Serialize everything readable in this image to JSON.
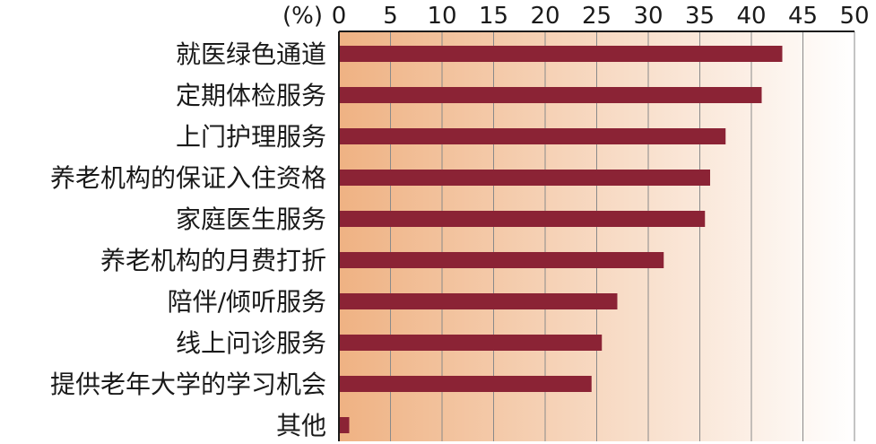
{
  "chart_data": {
    "type": "bar",
    "orientation": "horizontal",
    "unit": "(%)",
    "categories": [
      "就医绿色通道",
      "定期体检服务",
      "上门护理服务",
      "养老机构的保证入住资格",
      "家庭医生服务",
      "养老机构的月费打折",
      "陪伴/倾听服务",
      "线上问诊服务",
      "提供老年大学的学习机会",
      "其他"
    ],
    "values": [
      43.0,
      41.0,
      37.5,
      36.0,
      35.5,
      31.5,
      27.0,
      25.5,
      24.5,
      1.0
    ],
    "xlim": [
      0,
      50
    ],
    "xticks": [
      0,
      5,
      10,
      15,
      20,
      25,
      30,
      35,
      40,
      45,
      50
    ],
    "grid": true,
    "legend": "none",
    "colors": {
      "bar": "#8b2335",
      "gradient_start": "#efb283",
      "gradient_end": "#ffffff",
      "grid": "#8a8a8a",
      "axis": "#1a1a1a"
    }
  }
}
